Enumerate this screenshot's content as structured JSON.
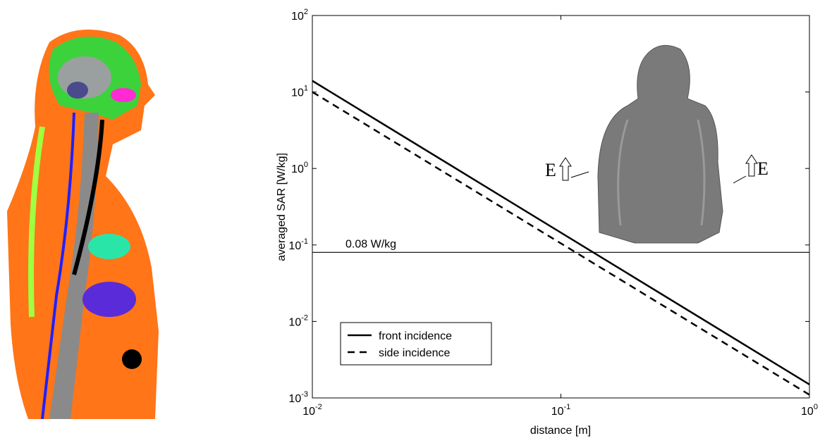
{
  "chart_data": {
    "type": "line",
    "log_x": true,
    "log_y": true,
    "x_label": "distance [m]",
    "y_label": "averaged SAR [W/kg]",
    "x": [
      0.01,
      1
    ],
    "series": [
      {
        "name": "front incidence",
        "color": "#000000",
        "dash": "solid",
        "values": [
          14,
          0.0015
        ]
      },
      {
        "name": "side incidence",
        "color": "#000000",
        "dash": "dashed",
        "values": [
          10,
          0.0011
        ]
      }
    ],
    "reference_line": {
      "value": 0.08,
      "label": "0.08 W/kg"
    },
    "annotations": [
      "E",
      "E"
    ],
    "xlim": [
      0.01,
      1
    ],
    "xticks": [
      {
        "value": 0.01,
        "label": "10",
        "exponent": "-2"
      },
      {
        "value": 0.1,
        "label": "10",
        "exponent": "-1"
      },
      {
        "value": 1,
        "label": "10",
        "exponent": "0"
      }
    ],
    "ylim": [
      0.001,
      100
    ],
    "yticks": [
      {
        "value": 0.001,
        "label": "10",
        "exponent": "-3"
      },
      {
        "value": 0.01,
        "label": "10",
        "exponent": "-2"
      },
      {
        "value": 0.1,
        "label": "10",
        "exponent": "-1"
      },
      {
        "value": 1,
        "label": "10",
        "exponent": "0"
      },
      {
        "value": 10,
        "label": "10",
        "exponent": "1"
      },
      {
        "value": 100,
        "label": "10",
        "exponent": "2"
      }
    ],
    "legend": "lower-left"
  }
}
